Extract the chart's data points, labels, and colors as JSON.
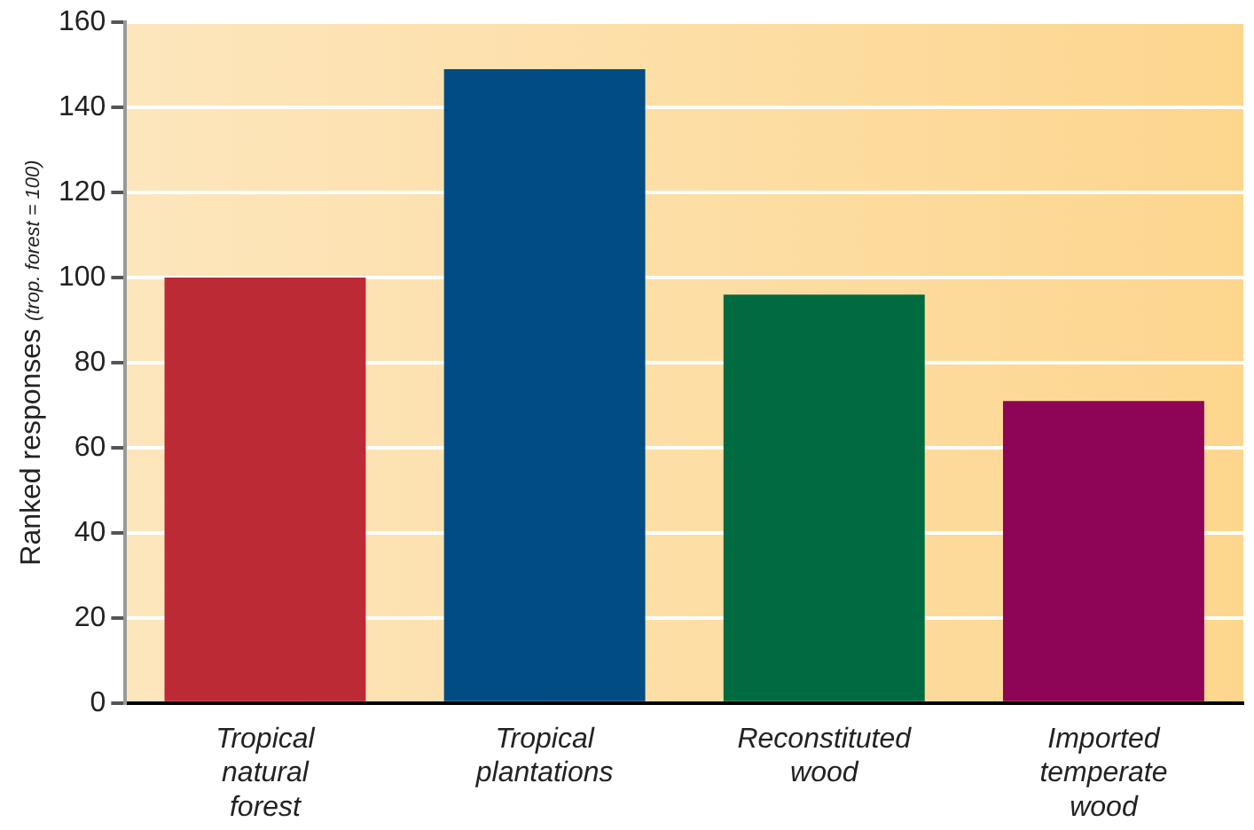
{
  "chart_data": {
    "type": "bar",
    "ylabel": "Ranked responses $_{(trop. forest = 100)}$",
    "categories": [
      "Tropical natural forest",
      "Tropical plantations",
      "Reconstituted wood",
      "Imported temperate wood"
    ],
    "values": [
      100,
      149,
      96,
      71
    ],
    "colors": [
      "#bc2a35",
      "#024c84",
      "#006a40",
      "#8e0456"
    ],
    "ylim": [
      0,
      160
    ],
    "yticks": [
      0,
      20,
      40,
      60,
      80,
      100,
      120,
      140,
      160
    ],
    "grid": "y",
    "legend": false
  }
}
